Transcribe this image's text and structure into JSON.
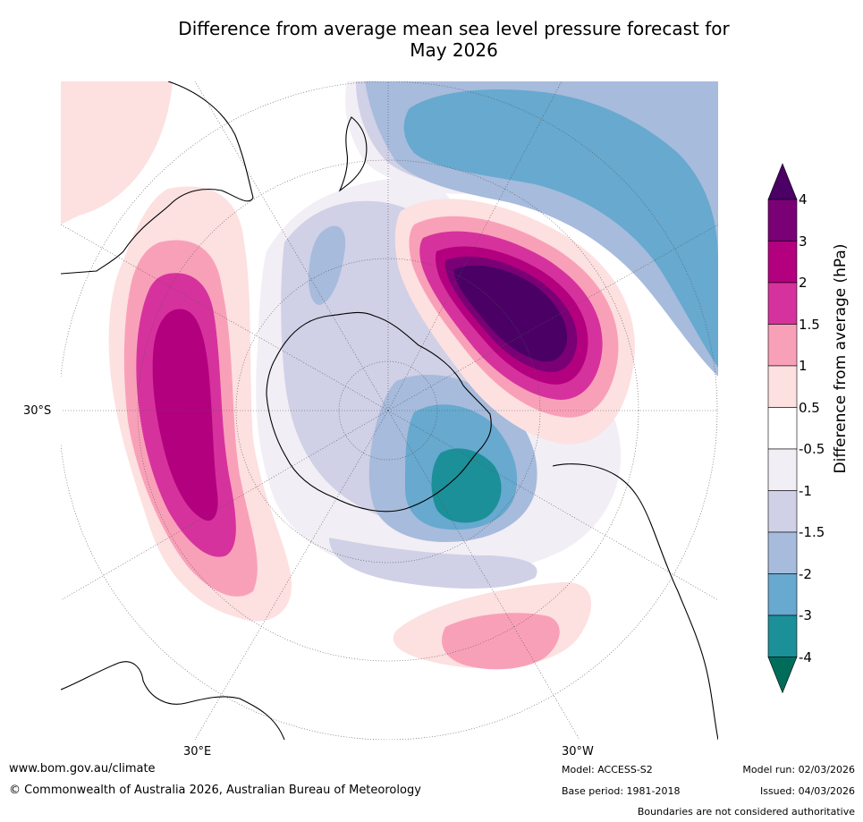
{
  "title_line1": "Difference from average mean sea level pressure forecast for",
  "title_line2": "May 2026",
  "map": {
    "lat_label": "30°S",
    "lon_label_left": "30°E",
    "lon_label_right": "30°W"
  },
  "colorbar": {
    "title": "Difference from average (hPa)",
    "ticks": [
      "4",
      "3",
      "2",
      "1.5",
      "1",
      "0.5",
      "-0.5",
      "-1",
      "-1.5",
      "-2",
      "-3",
      "-4"
    ],
    "colors": [
      "#4b0066",
      "#7a0075",
      "#b3007f",
      "#d6329d",
      "#f9a0b9",
      "#fde0e0",
      "#ffffff",
      "#f2eef5",
      "#d0d0e6",
      "#a7bbdc",
      "#67a9cf",
      "#1c9099",
      "#016c59"
    ]
  },
  "footer": {
    "website": "www.bom.gov.au/climate",
    "copyright": "© Commonwealth of Australia 2026, Australian Bureau of Meteorology",
    "model": "Model: ACCESS-S2",
    "base_period": "Base period: 1981-2018",
    "model_run": "Model run: 02/03/2026",
    "issued": "Issued: 04/03/2026",
    "disclaimer": "Boundaries are not considered authoritative"
  }
}
